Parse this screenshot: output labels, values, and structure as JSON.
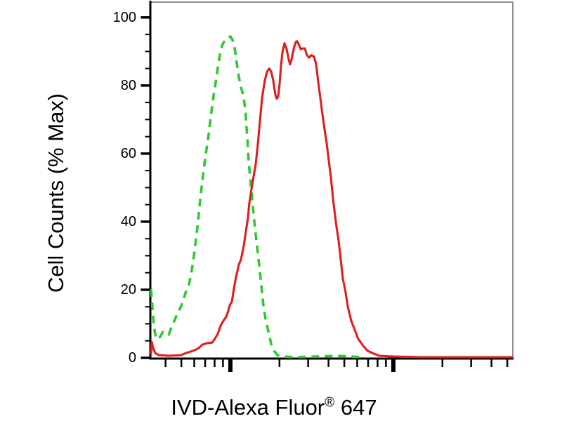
{
  "figure": {
    "kind": "flow cytometry overlay histogram"
  },
  "labels": {
    "ylabel": "Cell Counts (% Max)",
    "xlabel_prefix": "IVD-Alexa Fluor",
    "xlabel_reg": "®",
    "xlabel_suffix": " 647",
    "xlabel_full": "IVD-Alexa Fluor® 647"
  },
  "colors": {
    "background": "#ffffff",
    "axis": "#000000",
    "frame": "#8e8e8e",
    "text": "#000000",
    "green_dashed": "#2ec92e",
    "red_solid": "#dd1f1f"
  },
  "chart_data": {
    "type": "line",
    "subtype": "flow_cytometry_overlay_histogram",
    "title": "",
    "xlabel": "IVD-Alexa Fluor® 647",
    "ylabel": "Cell Counts (% Max)",
    "x_scale": "log10",
    "x_axis_description": "unlabeled logarithmic fluorescence axis; bold ticks at decade boundaries, minor ticks at 2-9 within decades",
    "xlim_log10": [
      0.513,
      2.733
    ],
    "ylim": [
      0,
      104.5
    ],
    "y_major_ticks": [
      0,
      20,
      40,
      60,
      80,
      100
    ],
    "y_minor_tick_step": 5,
    "grid": "off",
    "legend": "none",
    "series": [
      {
        "name": "green dashed curve",
        "style": "dashed",
        "color_key": "green_dashed",
        "peak_pct": 94.4,
        "points": [
          [
            0.513,
            20.2
          ],
          [
            0.522,
            14.4
          ],
          [
            0.53,
            9.9
          ],
          [
            0.539,
            6.8
          ],
          [
            0.552,
            5.4
          ],
          [
            0.569,
            6.2
          ],
          [
            0.586,
            7.6
          ],
          [
            0.603,
            7.2
          ],
          [
            0.621,
            6.8
          ],
          [
            0.638,
            8.9
          ],
          [
            0.655,
            10.7
          ],
          [
            0.672,
            12.8
          ],
          [
            0.694,
            14.8
          ],
          [
            0.711,
            16.9
          ],
          [
            0.728,
            19.6
          ],
          [
            0.746,
            21.6
          ],
          [
            0.759,
            24.7
          ],
          [
            0.772,
            28.5
          ],
          [
            0.784,
            33.0
          ],
          [
            0.797,
            38.1
          ],
          [
            0.81,
            44.3
          ],
          [
            0.823,
            49.9
          ],
          [
            0.836,
            55.1
          ],
          [
            0.849,
            59.8
          ],
          [
            0.862,
            63.9
          ],
          [
            0.875,
            69.1
          ],
          [
            0.888,
            73.8
          ],
          [
            0.901,
            78.4
          ],
          [
            0.914,
            82.1
          ],
          [
            0.927,
            86.6
          ],
          [
            0.94,
            90.3
          ],
          [
            0.953,
            92.2
          ],
          [
            0.966,
            93.2
          ],
          [
            0.983,
            94.0
          ],
          [
            1.0,
            94.4
          ],
          [
            1.013,
            93.4
          ],
          [
            1.026,
            91.1
          ],
          [
            1.039,
            86.6
          ],
          [
            1.052,
            82.5
          ],
          [
            1.065,
            79.4
          ],
          [
            1.078,
            77.3
          ],
          [
            1.091,
            73.2
          ],
          [
            1.103,
            65.0
          ],
          [
            1.112,
            57.7
          ],
          [
            1.125,
            51.1
          ],
          [
            1.138,
            44.3
          ],
          [
            1.151,
            38.1
          ],
          [
            1.164,
            32.6
          ],
          [
            1.177,
            27.2
          ],
          [
            1.19,
            21.0
          ],
          [
            1.203,
            15.1
          ],
          [
            1.216,
            11.3
          ],
          [
            1.233,
            7.8
          ],
          [
            1.25,
            4.1
          ],
          [
            1.267,
            2.1
          ],
          [
            1.289,
            0.8
          ],
          [
            1.31,
            0.4
          ],
          [
            1.397,
            0.2
          ],
          [
            1.526,
            0.4
          ],
          [
            1.655,
            0.6
          ],
          [
            1.741,
            0.4
          ],
          [
            1.806,
            0.2
          ]
        ]
      },
      {
        "name": "red solid curve",
        "style": "solid",
        "color_key": "red_solid",
        "peak_pct": 93.0,
        "points": [
          [
            0.513,
            1.0
          ],
          [
            0.517,
            4.7
          ],
          [
            0.526,
            2.9
          ],
          [
            0.539,
            1.4
          ],
          [
            0.56,
            0.8
          ],
          [
            0.621,
            0.6
          ],
          [
            0.698,
            0.8
          ],
          [
            0.728,
            1.4
          ],
          [
            0.759,
            1.9
          ],
          [
            0.784,
            2.3
          ],
          [
            0.806,
            2.9
          ],
          [
            0.828,
            3.9
          ],
          [
            0.858,
            4.3
          ],
          [
            0.888,
            4.5
          ],
          [
            0.905,
            5.6
          ],
          [
            0.922,
            7.0
          ],
          [
            0.94,
            9.5
          ],
          [
            0.957,
            10.9
          ],
          [
            0.974,
            12.0
          ],
          [
            0.987,
            13.8
          ],
          [
            0.996,
            15.5
          ],
          [
            1.009,
            16.5
          ],
          [
            1.022,
            20.6
          ],
          [
            1.034,
            23.7
          ],
          [
            1.052,
            27.4
          ],
          [
            1.065,
            28.9
          ],
          [
            1.082,
            33.0
          ],
          [
            1.095,
            37.1
          ],
          [
            1.108,
            41.2
          ],
          [
            1.116,
            45.4
          ],
          [
            1.129,
            49.5
          ],
          [
            1.142,
            53.2
          ],
          [
            1.155,
            56.7
          ],
          [
            1.168,
            62.5
          ],
          [
            1.181,
            69.5
          ],
          [
            1.194,
            76.3
          ],
          [
            1.211,
            81.4
          ],
          [
            1.224,
            83.9
          ],
          [
            1.237,
            85.0
          ],
          [
            1.25,
            84.1
          ],
          [
            1.263,
            81.4
          ],
          [
            1.276,
            77.3
          ],
          [
            1.284,
            76.1
          ],
          [
            1.293,
            76.7
          ],
          [
            1.302,
            80.4
          ],
          [
            1.31,
            85.6
          ],
          [
            1.319,
            89.7
          ],
          [
            1.332,
            92.4
          ],
          [
            1.345,
            90.7
          ],
          [
            1.358,
            87.6
          ],
          [
            1.366,
            86.2
          ],
          [
            1.375,
            87.6
          ],
          [
            1.388,
            90.7
          ],
          [
            1.401,
            92.8
          ],
          [
            1.409,
            93.0
          ],
          [
            1.422,
            91.8
          ],
          [
            1.431,
            90.7
          ],
          [
            1.444,
            90.9
          ],
          [
            1.457,
            90.9
          ],
          [
            1.47,
            88.9
          ],
          [
            1.483,
            88.2
          ],
          [
            1.496,
            88.9
          ],
          [
            1.513,
            88.5
          ],
          [
            1.526,
            86.2
          ],
          [
            1.539,
            81.0
          ],
          [
            1.552,
            76.3
          ],
          [
            1.565,
            71.5
          ],
          [
            1.578,
            67.0
          ],
          [
            1.591,
            62.9
          ],
          [
            1.603,
            58.1
          ],
          [
            1.616,
            53.2
          ],
          [
            1.629,
            47.0
          ],
          [
            1.647,
            39.8
          ],
          [
            1.664,
            34.4
          ],
          [
            1.677,
            28.9
          ],
          [
            1.69,
            23.3
          ],
          [
            1.707,
            19.2
          ],
          [
            1.72,
            15.1
          ],
          [
            1.741,
            10.9
          ],
          [
            1.763,
            8.2
          ],
          [
            1.784,
            5.6
          ],
          [
            1.815,
            3.5
          ],
          [
            1.841,
            2.1
          ],
          [
            1.871,
            1.4
          ],
          [
            1.914,
            0.6
          ],
          [
            2.0,
            0.4
          ],
          [
            2.172,
            0.2
          ],
          [
            2.431,
            0.2
          ],
          [
            2.733,
            0.2
          ]
        ]
      }
    ]
  }
}
